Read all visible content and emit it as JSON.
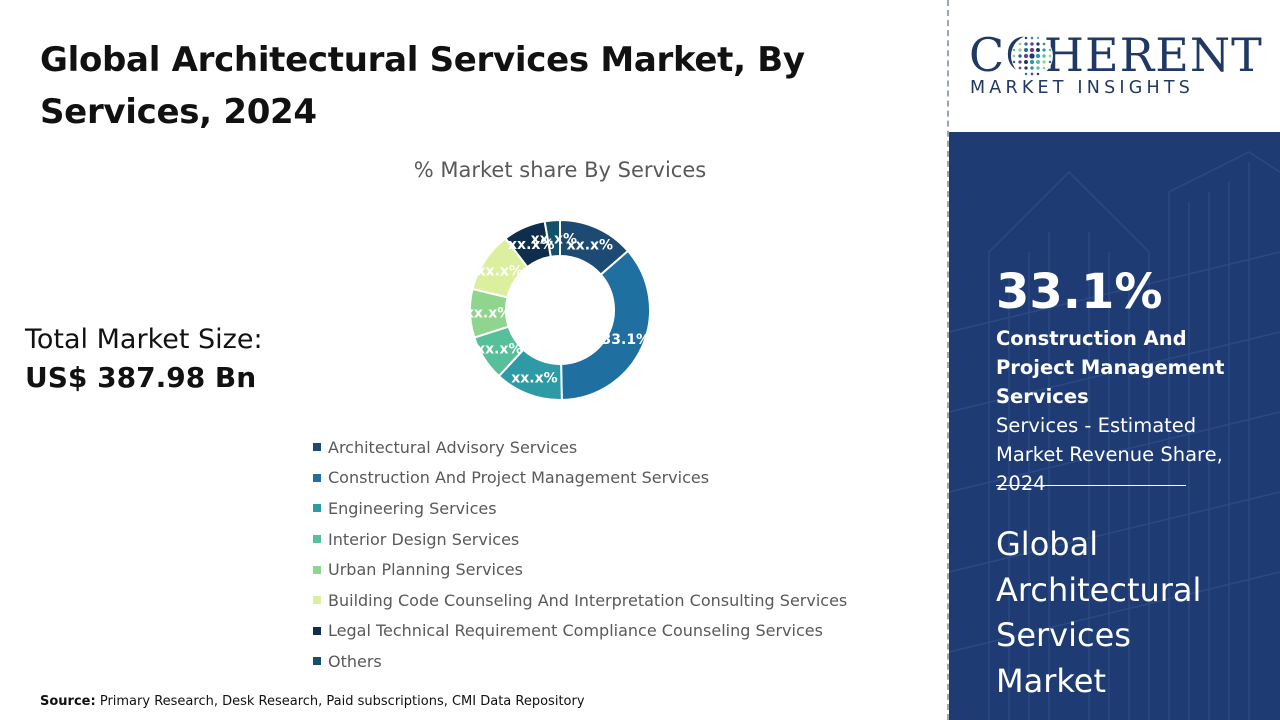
{
  "title": "Global Architectural Services Market, By Services, 2024",
  "total_market": {
    "label": "Total Market Size:",
    "value": "US$ 387.98 Bn"
  },
  "source": {
    "label": "Source:",
    "text": "Primary Research, Desk Research, Paid subscriptions, CMI Data Repository"
  },
  "logo": {
    "main": "COHERENT",
    "sub": "MARKET INSIGHTS"
  },
  "highlight": {
    "value": "33.1%",
    "segment": "Construction And Project Management Services",
    "description": "Services - Estimated Market Revenue Share, 2024",
    "market_name": "Global Architectural Services Market"
  },
  "chart_data": {
    "type": "pie",
    "variant": "donut",
    "title": "% Market share By Services",
    "legend_position": "bottom",
    "categories": [
      "Architectural Advisory Services",
      "Construction And Project Management Services",
      "Engineering Services",
      "Interior Design Services",
      "Urban Planning Services",
      "Building Code Counseling And Interpretation Consulting Services",
      "Legal Technical Requirement Compliance Counseling Services",
      "Others"
    ],
    "values": [
      12.5,
      33.1,
      11.2,
      7.5,
      8.0,
      10.0,
      7.0,
      2.5
    ],
    "data_labels": [
      "xx.x%",
      "33.1%",
      "xx.x%",
      "xx.x%",
      "xx.x%",
      "xx.x%",
      "xx.x%",
      "xx.x%"
    ],
    "colors": [
      "#1c4a72",
      "#1f6fa0",
      "#2d9aa6",
      "#56c09b",
      "#8fd58d",
      "#dcef9e",
      "#0f2d4d",
      "#14506a"
    ]
  }
}
